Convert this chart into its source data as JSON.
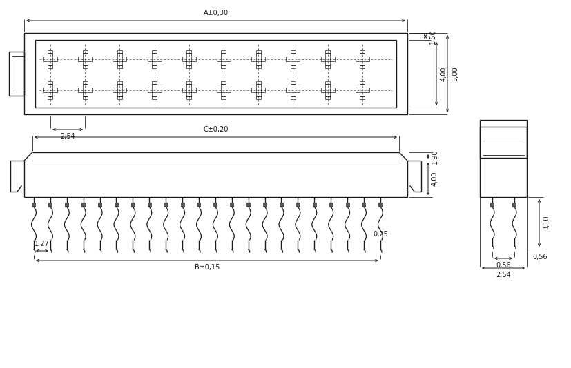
{
  "bg_color": "#ffffff",
  "line_color": "#1a1a1a",
  "lw": 1.0,
  "lw_thin": 0.6,
  "lw_dim": 0.7,
  "fs": 7.0,
  "labels": {
    "A": "A±0,30",
    "B": "B±0,15",
    "C": "C±0,20",
    "d150": "1,50",
    "d400a": "4,00",
    "d500": "5,00",
    "d254a": "2,54",
    "d190": "1,90",
    "d400b": "4,00",
    "d127": "1,27",
    "d025": "0,25",
    "d310": "3,10",
    "d056": "0,56",
    "d254b": "2,54"
  }
}
